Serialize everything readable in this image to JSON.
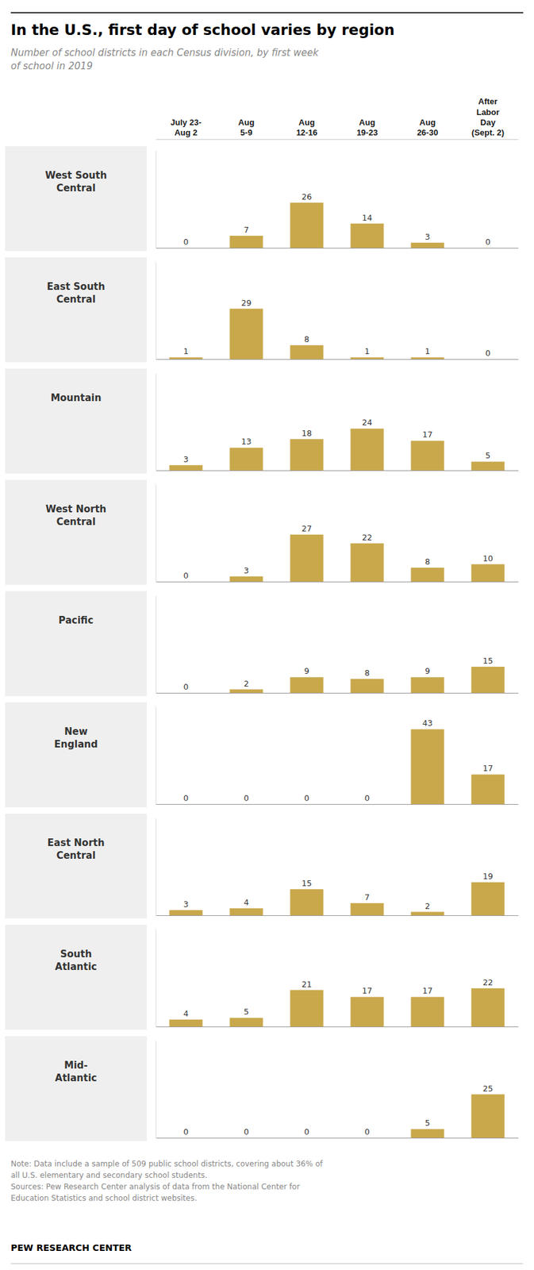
{
  "chart_data": {
    "type": "bar",
    "title": "In the U.S., first day of school varies by region",
    "subtitle": "Number of school districts in each Census division, by first week\nof school in 2019",
    "categories": [
      "July 23-\nAug 2",
      "Aug\n5-9",
      "Aug\n12-16",
      "Aug\n19-23",
      "Aug\n26-30",
      "After\nLabor\nDay\n(Sept. 2)"
    ],
    "series": [
      {
        "name": "West South\nCentral",
        "values": [
          0,
          7,
          26,
          14,
          3,
          0
        ]
      },
      {
        "name": "East South\nCentral",
        "values": [
          1,
          29,
          8,
          1,
          1,
          0
        ]
      },
      {
        "name": "Mountain",
        "values": [
          3,
          13,
          18,
          24,
          17,
          5
        ]
      },
      {
        "name": "West North\nCentral",
        "values": [
          0,
          3,
          27,
          22,
          8,
          10
        ]
      },
      {
        "name": "Pacific",
        "values": [
          0,
          2,
          9,
          8,
          9,
          15
        ]
      },
      {
        "name": "New\nEngland",
        "values": [
          0,
          0,
          0,
          0,
          43,
          17
        ]
      },
      {
        "name": "East North\nCentral",
        "values": [
          3,
          4,
          15,
          7,
          2,
          19
        ]
      },
      {
        "name": "South\nAtlantic",
        "values": [
          4,
          5,
          21,
          17,
          17,
          22
        ]
      },
      {
        "name": "Mid-\nAtlantic",
        "values": [
          0,
          0,
          0,
          0,
          5,
          25
        ]
      }
    ],
    "color": "#C9A84C",
    "ylim": [
      0,
      55.9
    ],
    "grid": false,
    "data_labels": true,
    "tick_labels": "x",
    "annotations": [
      "Note: Data include a sample of 509 public school districts, covering about 36% of\nall U.S. elementary and secondary school students.\nSources: Pew Research Center analysis of data from the National Center for\nEducation Statistics and school district websites.",
      "PEW RESEARCH CENTER"
    ]
  }
}
